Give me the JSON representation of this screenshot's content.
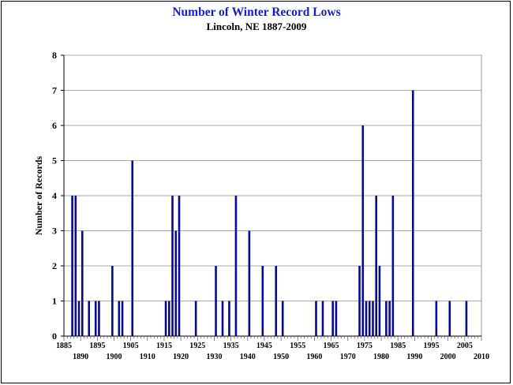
{
  "chart_data": {
    "type": "bar",
    "title": "Number of Winter Record Lows",
    "subtitle": "Lincoln, NE 1887-2009",
    "xlabel": "",
    "ylabel": "Number of Records",
    "xlim": [
      1885,
      2010
    ],
    "ylim": [
      0,
      8
    ],
    "y_ticks": [
      0,
      1,
      2,
      3,
      4,
      5,
      6,
      7,
      8
    ],
    "x_ticks_upper": [
      "1885",
      "1895",
      "1905",
      "1915",
      "1925",
      "1935",
      "1945",
      "1955",
      "1965",
      "1975",
      "1985",
      "1995",
      "2005"
    ],
    "x_ticks_lower": [
      "1890",
      "1900",
      "1910",
      "1920",
      "1930",
      "1940",
      "1950",
      "1960",
      "1970",
      "1980",
      "1990",
      "2000",
      "2010"
    ],
    "grid": "horizontal",
    "bar_color": "#0a0a8c",
    "series": [
      {
        "x": [
          1887,
          1888,
          1889,
          1890,
          1892,
          1894,
          1895,
          1899,
          1901,
          1902,
          1905,
          1915,
          1916,
          1917,
          1918,
          1919,
          1924,
          1930,
          1932,
          1934,
          1936,
          1940,
          1944,
          1948,
          1950,
          1960,
          1962,
          1965,
          1966,
          1973,
          1974,
          1975,
          1976,
          1977,
          1978,
          1979,
          1981,
          1982,
          1983,
          1989,
          1996,
          2000,
          2005
        ],
        "values": [
          4,
          4,
          1,
          3,
          1,
          1,
          1,
          2,
          1,
          1,
          5,
          1,
          1,
          4,
          3,
          4,
          1,
          2,
          1,
          1,
          4,
          3,
          2,
          2,
          1,
          1,
          1,
          1,
          1,
          2,
          6,
          1,
          1,
          1,
          4,
          2,
          1,
          1,
          4,
          7,
          1,
          1,
          1
        ]
      }
    ]
  }
}
